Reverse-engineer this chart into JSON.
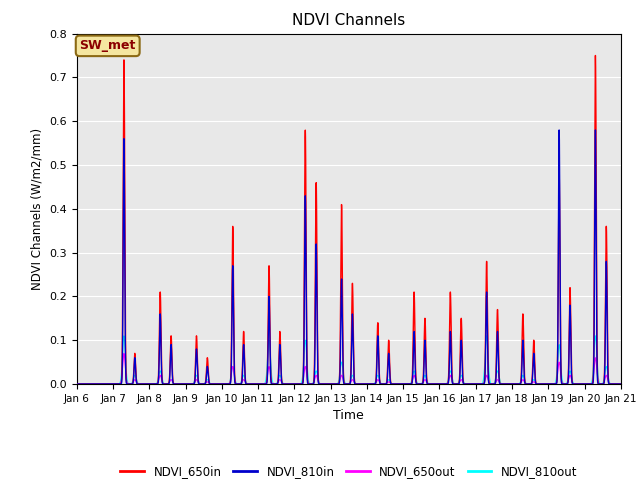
{
  "title": "NDVI Channels",
  "ylabel": "NDVI Channels (W/m2/mm)",
  "xlabel": "Time",
  "annotation": "SW_met",
  "ylim": [
    0.0,
    0.8
  ],
  "background_color": "#e8e8e8",
  "colors": {
    "NDVI_650in": "#ff0000",
    "NDVI_810in": "#0000cc",
    "NDVI_650out": "#ff00ff",
    "NDVI_810out": "#00ffff"
  },
  "x_tick_labels": [
    "Jan 6",
    "Jan 7",
    "Jan 8",
    "Jan 9",
    "Jan 10",
    "Jan 11",
    "Jan 12",
    "Jan 13",
    "Jan 14",
    "Jan 15",
    "Jan 16",
    "Jan 17",
    "Jan 18",
    "Jan 19",
    "Jan 20",
    "Jan 21"
  ],
  "spike_centers": [
    1.3,
    1.6,
    2.3,
    2.6,
    3.3,
    3.6,
    4.3,
    4.6,
    5.3,
    5.6,
    6.3,
    6.6,
    7.3,
    7.6,
    8.3,
    8.6,
    9.3,
    9.6,
    10.3,
    10.6,
    11.3,
    11.6,
    12.3,
    12.6,
    13.3,
    13.6,
    14.3,
    14.6
  ],
  "peaks_650in": [
    0.74,
    0.07,
    0.21,
    0.11,
    0.11,
    0.06,
    0.36,
    0.12,
    0.27,
    0.12,
    0.58,
    0.46,
    0.41,
    0.23,
    0.14,
    0.1,
    0.21,
    0.15,
    0.21,
    0.15,
    0.28,
    0.17,
    0.16,
    0.1,
    0.48,
    0.22,
    0.75,
    0.36
  ],
  "peaks_810in": [
    0.56,
    0.06,
    0.16,
    0.09,
    0.08,
    0.04,
    0.27,
    0.09,
    0.2,
    0.09,
    0.43,
    0.32,
    0.24,
    0.16,
    0.11,
    0.07,
    0.12,
    0.1,
    0.12,
    0.1,
    0.21,
    0.12,
    0.1,
    0.07,
    0.58,
    0.18,
    0.58,
    0.28
  ],
  "peaks_650out": [
    0.07,
    0.01,
    0.02,
    0.01,
    0.01,
    0.005,
    0.04,
    0.01,
    0.04,
    0.01,
    0.04,
    0.02,
    0.02,
    0.01,
    0.01,
    0.005,
    0.02,
    0.01,
    0.02,
    0.01,
    0.02,
    0.01,
    0.01,
    0.005,
    0.05,
    0.02,
    0.06,
    0.02
  ],
  "peaks_810out": [
    0.11,
    0.02,
    0.03,
    0.01,
    0.02,
    0.01,
    0.04,
    0.02,
    0.1,
    0.02,
    0.1,
    0.03,
    0.05,
    0.02,
    0.02,
    0.01,
    0.03,
    0.02,
    0.03,
    0.02,
    0.11,
    0.03,
    0.02,
    0.01,
    0.09,
    0.03,
    0.11,
    0.04
  ]
}
